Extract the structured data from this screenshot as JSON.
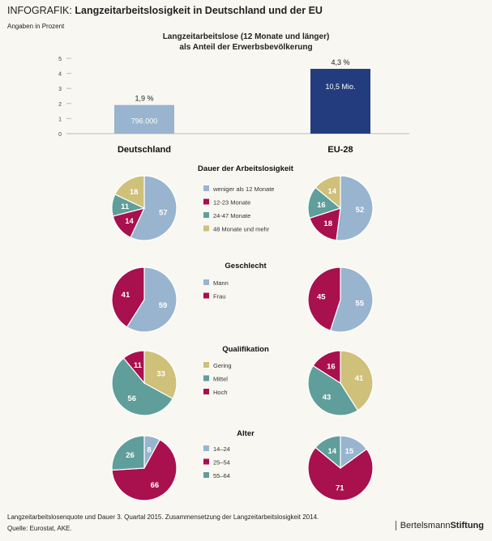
{
  "title_prefix": "INFOGRAFIK:",
  "title": "Langzeitarbeitslosigkeit in Deutschland und der EU",
  "subtitle": "Angaben in Prozent",
  "colors": {
    "blue": "#98b4cf",
    "crimson": "#a8104e",
    "teal": "#5f9e9a",
    "khaki": "#cfc07a",
    "navy": "#233c7e"
  },
  "chart_data": [
    {
      "type": "bar",
      "title_line1": "Langzeitarbeitslose (12 Monate und länger)",
      "title_line2": "als Anteil der Erwerbsbevölkerung",
      "categories": [
        "Deutschland",
        "EU-28"
      ],
      "values": [
        1.9,
        4.3
      ],
      "value_labels": [
        "1,9 %",
        "4,3 %"
      ],
      "inner_labels": [
        "796.000",
        "10,5 Mio."
      ],
      "ylim": [
        0,
        5
      ],
      "yticks": [
        0,
        1,
        2,
        3,
        4,
        5
      ],
      "bar_colors": [
        "#98b4cf",
        "#233c7e"
      ]
    },
    {
      "type": "pie",
      "title": "Dauer der Arbeitslosigkeit",
      "legend": [
        "weniger als 12 Monate",
        "12-23 Monate",
        "24-47 Monate",
        "48 Monate und mehr"
      ],
      "colors": [
        "#98b4cf",
        "#a8104e",
        "#5f9e9a",
        "#cfc07a"
      ],
      "series": [
        {
          "name": "Deutschland",
          "values": [
            57,
            14,
            11,
            18
          ]
        },
        {
          "name": "EU-28",
          "values": [
            52,
            18,
            16,
            14
          ]
        }
      ]
    },
    {
      "type": "pie",
      "title": "Geschlecht",
      "legend": [
        "Mann",
        "Frau"
      ],
      "colors": [
        "#98b4cf",
        "#a8104e"
      ],
      "series": [
        {
          "name": "Deutschland",
          "values": [
            59,
            41
          ]
        },
        {
          "name": "EU-28",
          "values": [
            55,
            45
          ]
        }
      ]
    },
    {
      "type": "pie",
      "title": "Qualifikation",
      "legend": [
        "Gering",
        "Mittel",
        "Hoch"
      ],
      "colors": [
        "#cfc07a",
        "#5f9e9a",
        "#a8104e"
      ],
      "series": [
        {
          "name": "Deutschland",
          "values": [
            33,
            56,
            11
          ]
        },
        {
          "name": "EU-28",
          "values": [
            41,
            43,
            16
          ]
        }
      ]
    },
    {
      "type": "pie",
      "title": "Alter",
      "legend": [
        "14–24",
        "25–54",
        "55–64"
      ],
      "colors": [
        "#98b4cf",
        "#a8104e",
        "#5f9e9a"
      ],
      "series": [
        {
          "name": "Deutschland",
          "values": [
            8,
            66,
            26
          ]
        },
        {
          "name": "EU-28",
          "values": [
            15,
            71,
            14
          ]
        }
      ]
    }
  ],
  "footer": {
    "note": "Langzeitarbeitslosenquote und Dauer 3. Quartal 2015. Zusammensetzung der Langzeitarbeitslosigkeit 2014.",
    "source": "Quelle: Eurostat, AKE.",
    "brand_a": "Bertelsmann",
    "brand_b": "Stiftung"
  }
}
